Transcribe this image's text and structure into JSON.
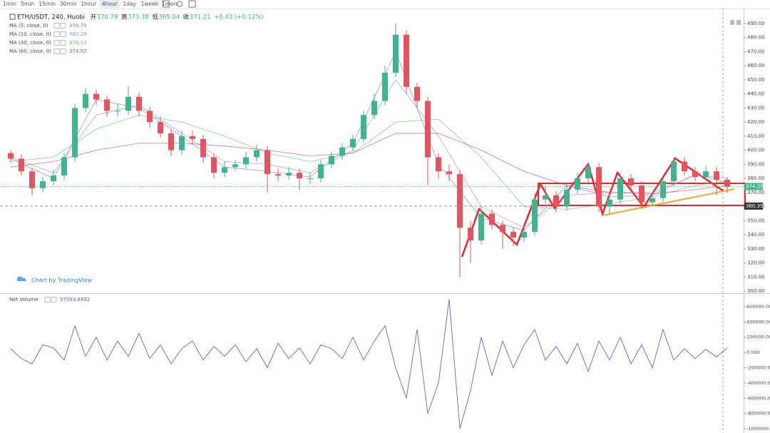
{
  "toolbar": {
    "intervals": [
      "1min",
      "5min",
      "15min",
      "30min",
      "1hour",
      "4hour",
      "1day",
      "1week",
      "1mon"
    ],
    "active": "4hour"
  },
  "chart_data": [
    {
      "type": "candlestick",
      "title": "ETH/USDT, 240, Huobi",
      "ohlc_legend": [
        {
          "label": "开",
          "value": 370.79
        },
        {
          "label": "高",
          "value": 373.38
        },
        {
          "label": "低",
          "value": 365.04
        },
        {
          "label": "收",
          "value": 371.21
        }
      ],
      "change": "+0.43 (+0.12%)",
      "up_color": "#3fb58f",
      "down_color": "#e8525c",
      "candles": [
        [
          398,
          400,
          391,
          394
        ],
        [
          394,
          397,
          382,
          385
        ],
        [
          385,
          387,
          368,
          373
        ],
        [
          373,
          381,
          370,
          378
        ],
        [
          378,
          386,
          375,
          382
        ],
        [
          382,
          398,
          379,
          395
        ],
        [
          395,
          433,
          392,
          430
        ],
        [
          430,
          444,
          427,
          440
        ],
        [
          440,
          443,
          432,
          436
        ],
        [
          436,
          439,
          424,
          428
        ],
        [
          428,
          433,
          424,
          428
        ],
        [
          428,
          445,
          425,
          438
        ],
        [
          438,
          441,
          424,
          428
        ],
        [
          428,
          431,
          416,
          420
        ],
        [
          420,
          424,
          409,
          412
        ],
        [
          412,
          415,
          396,
          400
        ],
        [
          400,
          414,
          397,
          410
        ],
        [
          410,
          414,
          404,
          408
        ],
        [
          408,
          411,
          391,
          395
        ],
        [
          395,
          398,
          380,
          384
        ],
        [
          384,
          392,
          381,
          388
        ],
        [
          388,
          393,
          385,
          390
        ],
        [
          390,
          399,
          387,
          395
        ],
        [
          395,
          404,
          392,
          400
        ],
        [
          400,
          403,
          370,
          383
        ],
        [
          383,
          387,
          378,
          382
        ],
        [
          382,
          388,
          379,
          384
        ],
        [
          384,
          387,
          372,
          380
        ],
        [
          380,
          384,
          376,
          380
        ],
        [
          380,
          393,
          377,
          390
        ],
        [
          390,
          399,
          387,
          396
        ],
        [
          396,
          405,
          393,
          402
        ],
        [
          402,
          411,
          399,
          408
        ],
        [
          408,
          428,
          405,
          425
        ],
        [
          425,
          440,
          422,
          435
        ],
        [
          435,
          460,
          432,
          455
        ],
        [
          455,
          490,
          452,
          482
        ],
        [
          482,
          485,
          440,
          445
        ],
        [
          445,
          448,
          430,
          435
        ],
        [
          435,
          438,
          375,
          395
        ],
        [
          395,
          398,
          380,
          385
        ],
        [
          385,
          390,
          378,
          383
        ],
        [
          383,
          386,
          310,
          345
        ],
        [
          345,
          350,
          320,
          336
        ],
        [
          336,
          360,
          333,
          355
        ],
        [
          355,
          358,
          344,
          347
        ],
        [
          347,
          350,
          330,
          342
        ],
        [
          342,
          345,
          332,
          338
        ],
        [
          338,
          346,
          335,
          342
        ],
        [
          342,
          370,
          339,
          365
        ],
        [
          365,
          375,
          362,
          368
        ],
        [
          368,
          371,
          356,
          360
        ],
        [
          360,
          376,
          357,
          372
        ],
        [
          372,
          384,
          369,
          380
        ],
        [
          380,
          391,
          377,
          388
        ],
        [
          388,
          391,
          356,
          360
        ],
        [
          360,
          369,
          354,
          365
        ],
        [
          365,
          384,
          362,
          380
        ],
        [
          380,
          383,
          372,
          375
        ],
        [
          375,
          378,
          358,
          363
        ],
        [
          363,
          370,
          360,
          366
        ],
        [
          366,
          381,
          363,
          378
        ],
        [
          378,
          395,
          375,
          392
        ],
        [
          392,
          395,
          382,
          385
        ],
        [
          385,
          388,
          378,
          381
        ],
        [
          381,
          389,
          378,
          385
        ],
        [
          385,
          388,
          368,
          379
        ],
        [
          379,
          381,
          370,
          374
        ]
      ],
      "indicators": [
        {
          "name": "MA (5, close, 0)",
          "value": 376.75,
          "color": "#6f86c4",
          "x": [
            0,
            4,
            8,
            12,
            16,
            20,
            24,
            28,
            32,
            36,
            40,
            44,
            48,
            52,
            56,
            60,
            64,
            67
          ],
          "values": [
            394,
            380,
            436,
            430,
            410,
            388,
            385,
            381,
            405,
            470,
            390,
            352,
            343,
            375,
            367,
            368,
            383,
            376.75
          ]
        },
        {
          "name": "MA (10, close, 0)",
          "value": 380.29,
          "color": "#a08fd3",
          "x": [
            0,
            4,
            8,
            12,
            16,
            20,
            24,
            28,
            32,
            36,
            40,
            44,
            48,
            52,
            56,
            60,
            64,
            67
          ],
          "values": [
            395,
            384,
            425,
            432,
            412,
            392,
            390,
            384,
            400,
            450,
            410,
            360,
            345,
            368,
            370,
            370,
            382,
            380.29
          ]
        },
        {
          "name": "MA (30, close, 0)",
          "value": 378.13,
          "color": "#6fc27a",
          "x": [
            0,
            4,
            8,
            12,
            16,
            20,
            24,
            28,
            32,
            36,
            40,
            44,
            48,
            52,
            56,
            60,
            64,
            67
          ],
          "values": [
            392,
            395,
            415,
            425,
            420,
            410,
            398,
            392,
            398,
            420,
            422,
            395,
            360,
            358,
            362,
            367,
            375,
            378.13
          ]
        },
        {
          "name": "MA (60, close, 0)",
          "value": 374.92,
          "color": "#d0507a",
          "x": [
            0,
            4,
            8,
            12,
            16,
            20,
            24,
            28,
            32,
            36,
            40,
            44,
            48,
            52,
            56,
            60,
            64,
            67
          ],
          "values": [
            388,
            392,
            400,
            405,
            405,
            403,
            400,
            396,
            398,
            412,
            412,
            400,
            385,
            375,
            370,
            369,
            372,
            374.92
          ]
        }
      ],
      "last_price": 374.25,
      "level": 360.35,
      "watermark": "Chart by TradingView",
      "ylim": [
        299,
        500.6
      ],
      "yticks": [
        {
          "value": 300,
          "label": "300.00"
        },
        {
          "value": 310,
          "label": "310.00"
        },
        {
          "value": 320,
          "label": "320.00"
        },
        {
          "value": 330,
          "label": "330.00"
        },
        {
          "value": 340,
          "label": "340.00"
        },
        {
          "value": 350,
          "label": "350.00"
        },
        {
          "value": 360,
          "label": "360.00"
        },
        {
          "value": 370,
          "label": "370.00"
        },
        {
          "value": 380,
          "label": "380.00"
        },
        {
          "value": 390,
          "label": "390.00"
        },
        {
          "value": 400,
          "label": "400.00"
        },
        {
          "value": 410,
          "label": "410.00"
        },
        {
          "value": 420,
          "label": "420.00"
        },
        {
          "value": 430,
          "label": "430.00"
        },
        {
          "value": 440,
          "label": "440.00"
        },
        {
          "value": 450,
          "label": "450.00"
        },
        {
          "value": 460,
          "label": "460.00"
        },
        {
          "value": 470,
          "label": "470.00"
        },
        {
          "value": 480,
          "label": "480.00"
        },
        {
          "value": 490,
          "label": "490.00"
        }
      ]
    },
    {
      "type": "line",
      "title": "Net Volume",
      "value": 97093.8892,
      "color": "#6a5ee0",
      "values": [
        50000,
        -80000,
        -150000,
        100000,
        60000,
        -100000,
        350000,
        -50000,
        200000,
        -100000,
        150000,
        -50000,
        250000,
        -80000,
        100000,
        -150000,
        50000,
        150000,
        -100000,
        80000,
        -50000,
        100000,
        -120000,
        50000,
        -200000,
        120000,
        -80000,
        60000,
        -150000,
        100000,
        50000,
        -80000,
        200000,
        -100000,
        150000,
        350000,
        -200000,
        -600000,
        300000,
        -800000,
        -400000,
        700000,
        -1000000,
        -500000,
        200000,
        -300000,
        150000,
        -200000,
        100000,
        300000,
        -100000,
        80000,
        -150000,
        120000,
        -250000,
        150000,
        -100000,
        200000,
        -150000,
        100000,
        -200000,
        300000,
        -100000,
        50000,
        -80000,
        40000,
        -60000,
        60000
      ],
      "ylim": [
        -1056000,
        768000
      ],
      "yticks": [
        {
          "value": 600000,
          "label": "600000.000"
        },
        {
          "value": 400000,
          "label": "400000.000"
        },
        {
          "value": 200000,
          "label": "200000.000"
        },
        {
          "value": 0,
          "label": "0.000"
        },
        {
          "value": -200000,
          "label": "-200000.000"
        },
        {
          "value": -400000,
          "label": "-400000.000"
        },
        {
          "value": -600000,
          "label": "-600000.000"
        },
        {
          "value": -800000,
          "label": "-800000.000"
        },
        {
          "value": -1000000,
          "label": "-1000000.00"
        }
      ]
    }
  ]
}
